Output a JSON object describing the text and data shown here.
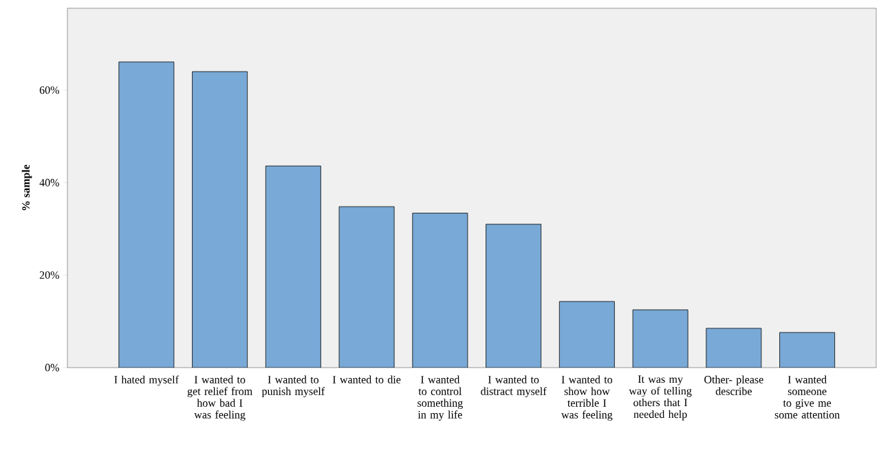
{
  "chart_data": {
    "type": "bar",
    "ylabel": "% sample",
    "categories": [
      "I hated myself",
      "I wanted to get relief from how bad I was feeling",
      "I wanted to punish myself",
      "I wanted to die",
      "I wanted to control something in my life",
      "I wanted to distract myself",
      "I wanted to show how terrible I was feeling",
      "It was my way of telling others that I needed help",
      "Other- please describe",
      "I wanted someone to give me some attention"
    ],
    "values": [
      66.1,
      64.0,
      43.6,
      34.8,
      33.4,
      31.0,
      14.3,
      12.5,
      8.5,
      7.6
    ],
    "color": "#79a9d6",
    "ylim": [
      0,
      77.7
    ],
    "yticks": [
      {
        "value": 0,
        "label": "0%"
      },
      {
        "value": 20,
        "label": "20%"
      },
      {
        "value": 40,
        "label": "40%"
      },
      {
        "value": 60,
        "label": "60%"
      }
    ]
  }
}
